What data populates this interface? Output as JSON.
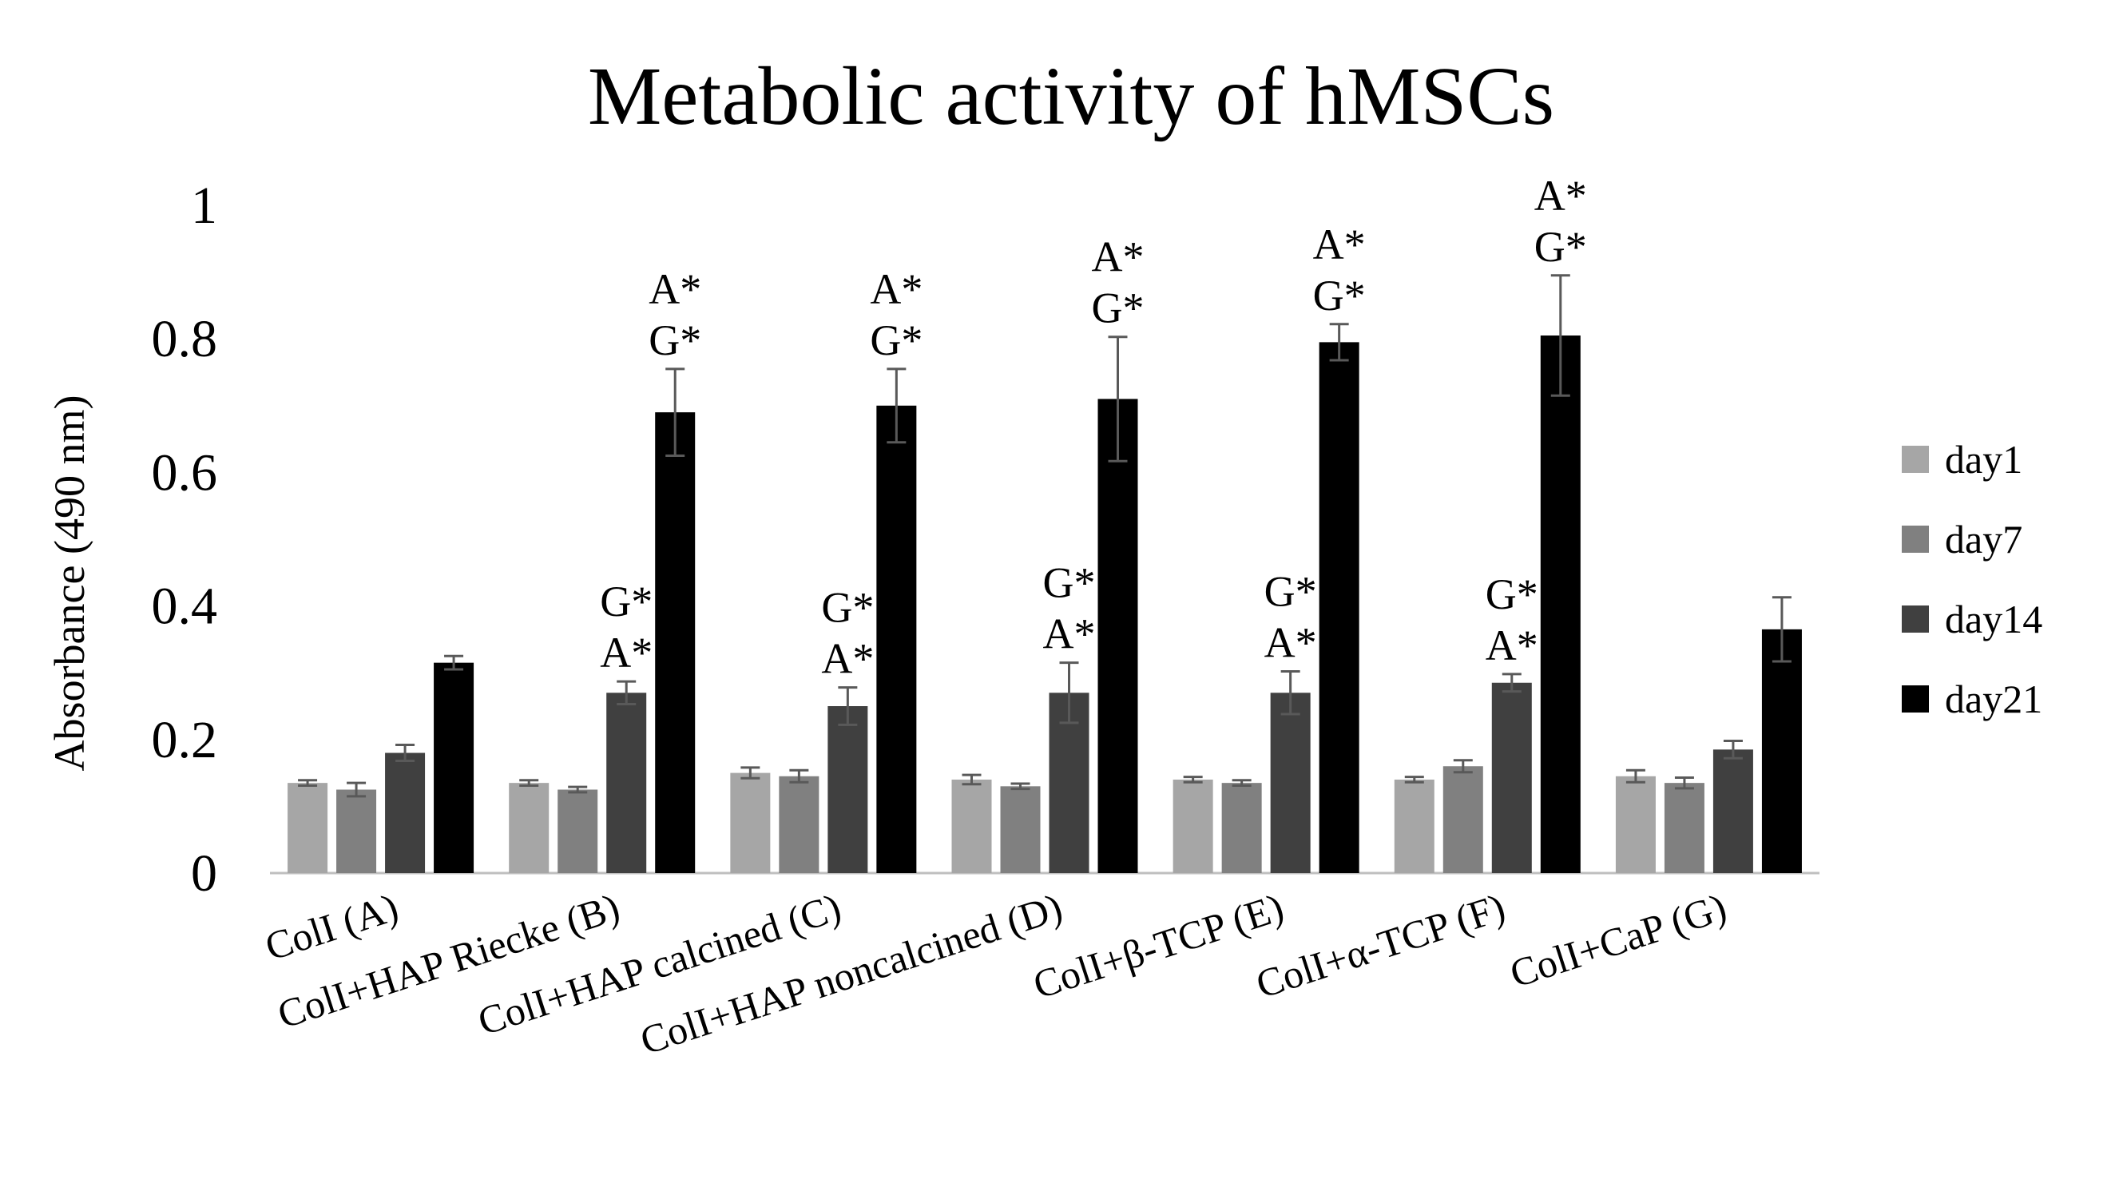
{
  "chart_data": {
    "type": "bar",
    "title": "Metabolic activity of hMSCs",
    "xlabel": "",
    "ylabel": "Absorbance (490 nm)",
    "ylim": [
      0,
      1
    ],
    "yticks": [
      "0",
      "0.2",
      "0.4",
      "0.6",
      "0.8",
      "1"
    ],
    "grid": false,
    "legend_position": "right",
    "categories": [
      "ColI (A)",
      "ColI+HAP Riecke (B)",
      "ColI+HAP calcined (C)",
      "ColI+HAP noncalcined (D)",
      "ColI+β-TCP (E)",
      "ColI+α-TCP (F)",
      "ColI+CaP (G)"
    ],
    "series": [
      {
        "name": "day1",
        "color": "#a6a6a6",
        "values": [
          0.135,
          0.135,
          0.15,
          0.14,
          0.14,
          0.14,
          0.145
        ],
        "errors": [
          0.004,
          0.004,
          0.008,
          0.007,
          0.004,
          0.004,
          0.009
        ]
      },
      {
        "name": "day7",
        "color": "#808080",
        "values": [
          0.125,
          0.125,
          0.145,
          0.13,
          0.135,
          0.16,
          0.135
        ],
        "errors": [
          0.01,
          0.004,
          0.009,
          0.004,
          0.004,
          0.009,
          0.008
        ]
      },
      {
        "name": "day14",
        "color": "#404040",
        "values": [
          0.18,
          0.27,
          0.25,
          0.27,
          0.27,
          0.285,
          0.185
        ],
        "errors": [
          0.012,
          0.017,
          0.028,
          0.045,
          0.032,
          0.013,
          0.013
        ]
      },
      {
        "name": "day21",
        "color": "#000000",
        "values": [
          0.315,
          0.69,
          0.7,
          0.71,
          0.795,
          0.805,
          0.365
        ],
        "errors": [
          0.01,
          0.065,
          0.055,
          0.093,
          0.027,
          0.09,
          0.048
        ]
      }
    ],
    "annotations": [
      {
        "category": 1,
        "series": 2,
        "lines": [
          "G*",
          "A*"
        ]
      },
      {
        "category": 1,
        "series": 3,
        "lines": [
          "A*",
          "G*"
        ]
      },
      {
        "category": 2,
        "series": 2,
        "lines": [
          "G*",
          "A*"
        ]
      },
      {
        "category": 2,
        "series": 3,
        "lines": [
          "A*",
          "G*"
        ]
      },
      {
        "category": 3,
        "series": 2,
        "lines": [
          "G*",
          "A*"
        ]
      },
      {
        "category": 3,
        "series": 3,
        "lines": [
          "A*",
          "G*"
        ]
      },
      {
        "category": 4,
        "series": 2,
        "lines": [
          "G*",
          "A*"
        ]
      },
      {
        "category": 4,
        "series": 3,
        "lines": [
          "A*",
          "G*"
        ]
      },
      {
        "category": 5,
        "series": 2,
        "lines": [
          "G*",
          "A*"
        ]
      },
      {
        "category": 5,
        "series": 3,
        "lines": [
          "A*",
          "G*"
        ]
      }
    ]
  }
}
